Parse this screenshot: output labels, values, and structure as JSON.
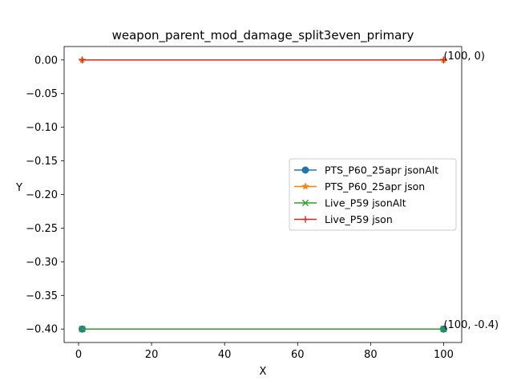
{
  "chart_data": {
    "type": "line",
    "title": "weapon_parent_mod_damage_split3even_primary",
    "xlabel": "X",
    "ylabel": "Y",
    "xlim": [
      -3.95,
      104.95
    ],
    "ylim": [
      -0.42,
      0.02
    ],
    "xticks": [
      0,
      20,
      40,
      60,
      80,
      100
    ],
    "yticks": [
      0.0,
      -0.05,
      -0.1,
      -0.15,
      -0.2,
      -0.25,
      -0.3,
      -0.35,
      -0.4
    ],
    "ytick_labels": [
      "0.00",
      "−0.05",
      "−0.10",
      "−0.15",
      "−0.20",
      "−0.25",
      "−0.30",
      "−0.35",
      "−0.40"
    ],
    "xtick_labels": [
      "0",
      "20",
      "40",
      "60",
      "80",
      "100"
    ],
    "grid": false,
    "legend_position": "center-right",
    "series": [
      {
        "name": "PTS_P60_25apr jsonAlt",
        "color": "#1f77b4",
        "marker": "circle",
        "x": [
          1,
          100
        ],
        "y": [
          -0.4,
          -0.4
        ]
      },
      {
        "name": "PTS_P60_25apr json",
        "color": "#ff7f0e",
        "marker": "star",
        "x": [
          1,
          100
        ],
        "y": [
          0,
          0
        ]
      },
      {
        "name": "Live_P59 jsonAlt",
        "color": "#2ca02c",
        "marker": "x",
        "x": [
          1,
          100
        ],
        "y": [
          -0.4,
          -0.4
        ]
      },
      {
        "name": "Live_P59 json",
        "color": "#d62728",
        "marker": "plus",
        "x": [
          1,
          100
        ],
        "y": [
          0,
          0
        ]
      }
    ],
    "annotations": [
      {
        "text": "(100, 0)",
        "x": 100,
        "y": 0
      },
      {
        "text": "(100, -0.4)",
        "x": 100,
        "y": -0.4
      }
    ]
  }
}
